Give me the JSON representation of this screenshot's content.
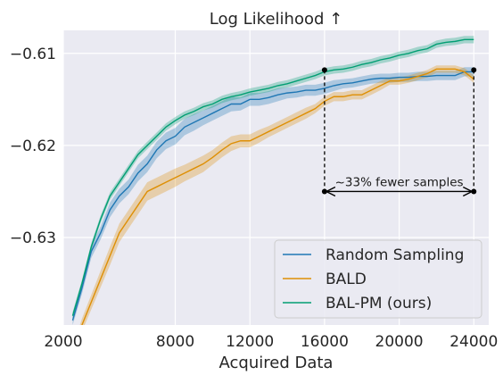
{
  "chart_data": {
    "type": "line",
    "title": "Log Likelihood ↑",
    "xlabel": "Acquired Data",
    "ylabel": "",
    "xlim": [
      2000,
      24800
    ],
    "ylim": [
      -0.6395,
      -0.6075
    ],
    "x_ticks": [
      2000,
      8000,
      12000,
      16000,
      20000,
      24000
    ],
    "x_tick_labels": [
      "2000",
      "8000",
      "12000",
      "16000",
      "20000",
      "24000"
    ],
    "y_ticks": [
      -0.61,
      -0.62,
      -0.63
    ],
    "y_tick_labels": [
      "−0.61",
      "−0.62",
      "−0.63"
    ],
    "grid": true,
    "legend_position": "bottom-right",
    "series": [
      {
        "name": "Random Sampling",
        "color": "#1f77b4",
        "x": [
          2500,
          3000,
          3500,
          4000,
          4500,
          5000,
          5500,
          6000,
          6500,
          7000,
          7500,
          8000,
          8500,
          9000,
          9500,
          10000,
          10500,
          11000,
          11500,
          12000,
          12500,
          13000,
          13500,
          14000,
          14500,
          15000,
          15500,
          16000,
          16500,
          17000,
          17500,
          18000,
          18500,
          19000,
          19500,
          20000,
          20500,
          21000,
          21500,
          22000,
          22500,
          23000,
          23500,
          24000
        ],
        "y": [
          -0.639,
          -0.6355,
          -0.6315,
          -0.6295,
          -0.627,
          -0.6255,
          -0.6245,
          -0.623,
          -0.622,
          -0.6205,
          -0.6195,
          -0.619,
          -0.618,
          -0.6175,
          -0.617,
          -0.6165,
          -0.616,
          -0.6155,
          -0.6155,
          -0.615,
          -0.615,
          -0.6148,
          -0.6145,
          -0.6143,
          -0.6142,
          -0.614,
          -0.614,
          -0.6138,
          -0.6135,
          -0.6133,
          -0.6132,
          -0.613,
          -0.6128,
          -0.6127,
          -0.6127,
          -0.6126,
          -0.6126,
          -0.6125,
          -0.6125,
          -0.6124,
          -0.6124,
          -0.6124,
          -0.612,
          -0.612
        ],
        "band": [
          0.0005,
          0.0006,
          0.0007,
          0.0007,
          0.0008,
          0.0008,
          0.0008,
          0.0009,
          0.0009,
          0.0009,
          0.0009,
          0.0009,
          0.0009,
          0.0009,
          0.0008,
          0.0008,
          0.0008,
          0.0008,
          0.0007,
          0.0007,
          0.0007,
          0.0007,
          0.0007,
          0.0006,
          0.0006,
          0.0006,
          0.0006,
          0.0006,
          0.0006,
          0.0005,
          0.0005,
          0.0005,
          0.0005,
          0.0005,
          0.0005,
          0.0005,
          0.0005,
          0.0005,
          0.0005,
          0.0005,
          0.0005,
          0.0005,
          0.0005,
          0.0005
        ]
      },
      {
        "name": "BALD",
        "color": "#de8f05",
        "x": [
          2500,
          3000,
          3500,
          4000,
          4500,
          5000,
          5500,
          6000,
          6500,
          7000,
          7500,
          8000,
          8500,
          9000,
          9500,
          10000,
          10500,
          11000,
          11500,
          12000,
          12500,
          13000,
          13500,
          14000,
          14500,
          15000,
          15500,
          16000,
          16500,
          17000,
          17500,
          18000,
          18500,
          19000,
          19500,
          20000,
          20500,
          21000,
          21500,
          22000,
          22500,
          23000,
          23500,
          24000
        ],
        "y": [
          -0.6425,
          -0.6395,
          -0.637,
          -0.6345,
          -0.632,
          -0.6295,
          -0.628,
          -0.6265,
          -0.625,
          -0.6245,
          -0.624,
          -0.6235,
          -0.623,
          -0.6225,
          -0.622,
          -0.6213,
          -0.6205,
          -0.6198,
          -0.6195,
          -0.6195,
          -0.619,
          -0.6185,
          -0.618,
          -0.6175,
          -0.617,
          -0.6165,
          -0.616,
          -0.6152,
          -0.6147,
          -0.6147,
          -0.6145,
          -0.6145,
          -0.614,
          -0.6135,
          -0.613,
          -0.613,
          -0.6128,
          -0.6125,
          -0.6122,
          -0.6117,
          -0.6117,
          -0.6117,
          -0.612,
          -0.6128
        ],
        "band": [
          0.0006,
          0.0007,
          0.0008,
          0.0009,
          0.001,
          0.001,
          0.001,
          0.001,
          0.001,
          0.001,
          0.001,
          0.001,
          0.0009,
          0.0009,
          0.0009,
          0.0008,
          0.0008,
          0.0008,
          0.0007,
          0.0007,
          0.0007,
          0.0006,
          0.0006,
          0.0006,
          0.0006,
          0.0006,
          0.0005,
          0.0005,
          0.0005,
          0.0005,
          0.0005,
          0.0005,
          0.0005,
          0.0005,
          0.0004,
          0.0004,
          0.0004,
          0.0004,
          0.0004,
          0.0004,
          0.0004,
          0.0004,
          0.0004,
          0.0004
        ]
      },
      {
        "name": "BAL-PM (ours)",
        "color": "#029e73",
        "x": [
          2500,
          3000,
          3500,
          4000,
          4500,
          5000,
          5500,
          6000,
          6500,
          7000,
          7500,
          8000,
          8500,
          9000,
          9500,
          10000,
          10500,
          11000,
          11500,
          12000,
          12500,
          13000,
          13500,
          14000,
          14500,
          15000,
          15500,
          16000,
          16500,
          17000,
          17500,
          18000,
          18500,
          19000,
          19500,
          20000,
          20500,
          21000,
          21500,
          22000,
          22500,
          23000,
          23500,
          24000
        ],
        "y": [
          -0.6385,
          -0.635,
          -0.631,
          -0.628,
          -0.6255,
          -0.624,
          -0.6225,
          -0.621,
          -0.62,
          -0.619,
          -0.618,
          -0.6173,
          -0.6167,
          -0.6163,
          -0.6158,
          -0.6155,
          -0.615,
          -0.6147,
          -0.6145,
          -0.6142,
          -0.614,
          -0.6138,
          -0.6135,
          -0.6133,
          -0.613,
          -0.6127,
          -0.6124,
          -0.612,
          -0.6118,
          -0.6117,
          -0.6115,
          -0.6112,
          -0.611,
          -0.6107,
          -0.6105,
          -0.6102,
          -0.61,
          -0.6097,
          -0.6095,
          -0.609,
          -0.6088,
          -0.6087,
          -0.6085,
          -0.6085
        ],
        "band": [
          0.0004,
          0.0004,
          0.0004,
          0.0004,
          0.0004,
          0.0004,
          0.0004,
          0.0004,
          0.0004,
          0.0004,
          0.0004,
          0.0004,
          0.0004,
          0.0004,
          0.0004,
          0.0004,
          0.0004,
          0.0004,
          0.0004,
          0.0004,
          0.0004,
          0.0004,
          0.0004,
          0.0004,
          0.0004,
          0.0004,
          0.0004,
          0.0004,
          0.0004,
          0.0004,
          0.0004,
          0.0004,
          0.0004,
          0.0004,
          0.0004,
          0.0004,
          0.0004,
          0.0004,
          0.0004,
          0.0004,
          0.0004,
          0.0004,
          0.0004,
          0.0004
        ]
      }
    ],
    "annotation": {
      "text": "~33% fewer samples",
      "x_start": 16000,
      "x_end": 24000,
      "arrow_y": -0.625,
      "marker_y_start": -0.6118,
      "marker_y_end": -0.6118
    },
    "colors": {
      "plot_background": "#eaeaf2",
      "grid": "#ffffff",
      "legend_background": "#eaeaf2",
      "legend_border": "#cccccc"
    }
  }
}
